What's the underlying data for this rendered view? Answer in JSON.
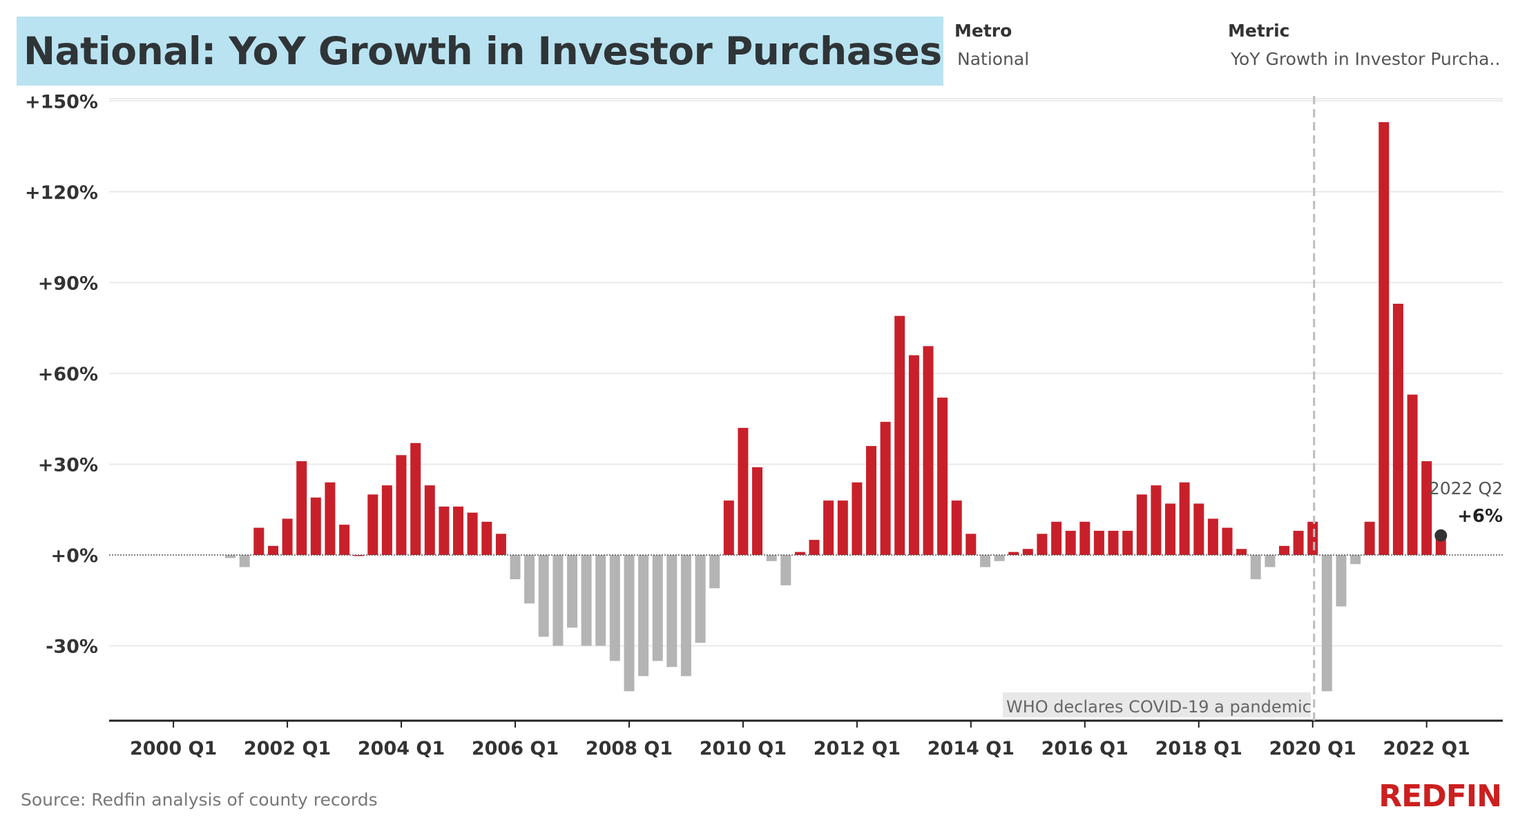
{
  "header": {
    "title": "National: YoY Growth in Investor Purchases",
    "metro_label": "Metro",
    "metro_value": "National",
    "metric_label": "Metric",
    "metric_value": "YoY Growth in Investor Purcha.."
  },
  "footer": {
    "source": "Source: Redfin analysis of county records",
    "logo_text": "REDFIN"
  },
  "colors": {
    "positive": "#c8202a",
    "negative": "#b4b4b4",
    "title_bg": "#b9e3f1",
    "brand": "#cc1f1f"
  },
  "chart_data": {
    "type": "bar",
    "title": "National: YoY Growth in Investor Purchases",
    "xlabel": "",
    "ylabel": "",
    "ylim": [
      -50,
      150
    ],
    "y_ticks": [
      150,
      120,
      90,
      60,
      30,
      0,
      -30
    ],
    "y_tick_labels": [
      "+150%",
      "+120%",
      "+90%",
      "+60%",
      "+30%",
      "+0%",
      "-30%"
    ],
    "x_tick_labels": [
      "2000 Q1",
      "2002 Q1",
      "2004 Q1",
      "2006 Q1",
      "2008 Q1",
      "2010 Q1",
      "2012 Q1",
      "2014 Q1",
      "2016 Q1",
      "2018 Q1",
      "2020 Q1",
      "2022 Q1"
    ],
    "first_quarter": "2001 Q1",
    "values": [
      -1,
      -4,
      9,
      3,
      12,
      31,
      19,
      24,
      10,
      0,
      20,
      23,
      33,
      37,
      23,
      16,
      16,
      14,
      11,
      7,
      -8,
      -16,
      -27,
      -30,
      -24,
      -30,
      -30,
      -35,
      -45,
      -40,
      -35,
      -37,
      -40,
      -29,
      -11,
      18,
      42,
      29,
      -2,
      -10,
      1,
      5,
      18,
      18,
      24,
      36,
      44,
      79,
      66,
      69,
      52,
      18,
      7,
      -4,
      -2,
      1,
      2,
      7,
      11,
      8,
      11,
      8,
      8,
      8,
      20,
      23,
      17,
      24,
      17,
      12,
      9,
      2,
      -8,
      -4,
      3,
      8,
      11,
      -45,
      -17,
      -3,
      11,
      143,
      83,
      53,
      31,
      6
    ],
    "annotations": {
      "covid_label": "WHO declares COVID-19 a pandemic",
      "last_period": "2022 Q2",
      "last_value_label": "+6%"
    }
  }
}
